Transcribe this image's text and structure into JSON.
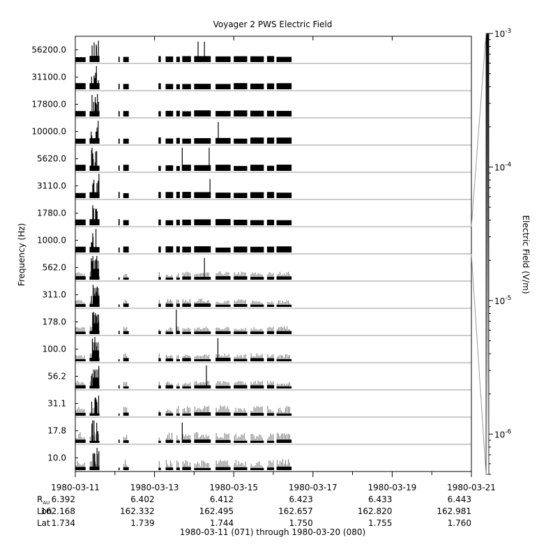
{
  "chart_data": {
    "type": "heatmap",
    "title": "Voyager 2 PWS Electric Field",
    "ylabel": "Frequency (Hz)",
    "colorbar_label": "Electric Field (V/m)",
    "colorbar_scale": "log",
    "colorbar_range": [
      5e-07,
      0.001
    ],
    "colorbar_ticks": [
      {
        "value": 1e-06,
        "base": "10",
        "exp": "-6"
      },
      {
        "value": 1e-05,
        "base": "10",
        "exp": "-5"
      },
      {
        "value": 0.0001,
        "base": "10",
        "exp": "-4"
      },
      {
        "value": 0.001,
        "base": "10",
        "exp": "-3"
      }
    ],
    "xlim": [
      "1980-03-11",
      "1980-03-21"
    ],
    "x_tick_labels": [
      "1980-03-11",
      "1980-03-13",
      "1980-03-15",
      "1980-03-17",
      "1980-03-19",
      "1980-03-21"
    ],
    "x_minor_days": [
      "1980-03-12",
      "1980-03-14",
      "1980-03-16",
      "1980-03-18",
      "1980-03-20"
    ],
    "x_range_label": "1980-03-11 (071) through 1980-03-20 (080)",
    "ephemeris": {
      "rows": [
        {
          "label_main": "R",
          "label_sub": "AU",
          "values": [
            "6.392",
            "6.402",
            "6.412",
            "6.423",
            "6.433",
            "6.443"
          ]
        },
        {
          "label_main": "Lon",
          "label_sub": "",
          "values": [
            "162.168",
            "162.332",
            "162.495",
            "162.657",
            "162.820",
            "162.981"
          ]
        },
        {
          "label_main": "Lat",
          "label_sub": "",
          "values": [
            "1.734",
            "1.739",
            "1.744",
            "1.750",
            "1.755",
            "1.760"
          ]
        }
      ]
    },
    "channels": [
      "56200.0",
      "31100.0",
      "17800.0",
      "10000.0",
      "5620.0",
      "3110.0",
      "1780.0",
      "1000.0",
      "562.0",
      "311.0",
      "178.0",
      "100.0",
      "56.2",
      "31.1",
      "17.8",
      "10.0"
    ],
    "data_segments_days": [
      [
        0.0,
        0.26
      ],
      [
        0.36,
        0.61
      ],
      [
        1.09,
        1.12
      ],
      [
        1.21,
        1.35
      ],
      [
        2.1,
        2.16
      ],
      [
        2.28,
        2.47
      ],
      [
        2.55,
        2.64
      ],
      [
        2.7,
        2.92
      ],
      [
        3.0,
        3.42
      ],
      [
        3.54,
        3.92
      ],
      [
        4.0,
        4.34
      ],
      [
        4.42,
        4.76
      ],
      [
        4.84,
        5.02
      ],
      [
        5.08,
        5.46
      ]
    ],
    "spikes": [
      {
        "channel": "56200.0",
        "day": 3.1,
        "level": 0.75
      },
      {
        "channel": "56200.0",
        "day": 3.26,
        "level": 0.75
      },
      {
        "channel": "10000.0",
        "day": 3.61,
        "level": 0.8
      },
      {
        "channel": "5620.0",
        "day": 2.7,
        "level": 0.85
      },
      {
        "channel": "5620.0",
        "day": 3.38,
        "level": 0.85
      },
      {
        "channel": "3110.0",
        "day": 3.4,
        "level": 0.7
      },
      {
        "channel": "562.0",
        "day": 3.26,
        "level": 0.8
      },
      {
        "channel": "178.0",
        "day": 2.55,
        "level": 0.9
      },
      {
        "channel": "100.0",
        "day": 3.6,
        "level": 0.85
      },
      {
        "channel": "56.2",
        "day": 3.31,
        "level": 0.85
      },
      {
        "channel": "17.8",
        "day": 2.7,
        "level": 0.75
      }
    ]
  }
}
